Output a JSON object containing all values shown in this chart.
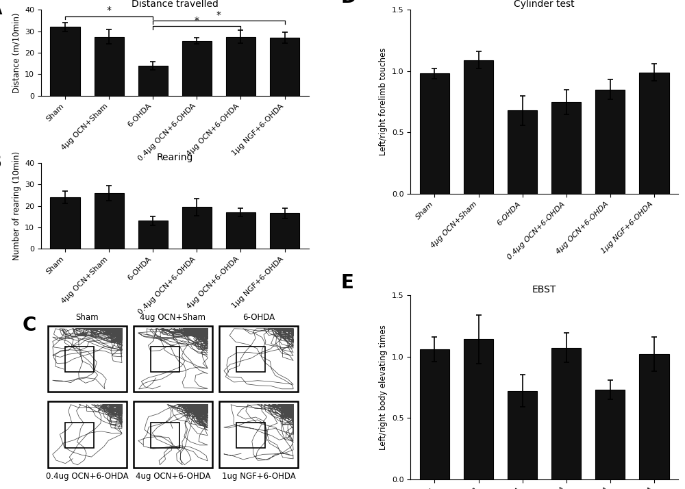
{
  "categories": [
    "Sham",
    "4μg OCN+Sham",
    "6-OHDA",
    "0.4μg OCN+6-OHDA",
    "4μg OCN+6-OHDA",
    "1μg NGF+6-OHDA"
  ],
  "A_values": [
    32,
    27.5,
    14,
    25.5,
    27.5,
    27
  ],
  "A_errors": [
    2.0,
    3.5,
    2.0,
    1.5,
    3.0,
    2.5
  ],
  "A_title": "Distance travelled",
  "A_ylabel": "Distance (m/10min)",
  "A_ylim": [
    0,
    40
  ],
  "A_yticks": [
    0,
    10,
    20,
    30,
    40
  ],
  "B_values": [
    24,
    26,
    13,
    19.5,
    17,
    16.5
  ],
  "B_errors": [
    3.0,
    3.5,
    2.0,
    4.0,
    2.0,
    2.5
  ],
  "B_title": "Rearing",
  "B_ylabel": "Number of rearing (10min)",
  "B_ylim": [
    0,
    40
  ],
  "B_yticks": [
    0,
    10,
    20,
    30,
    40
  ],
  "D_values": [
    0.98,
    1.09,
    0.68,
    0.75,
    0.85,
    0.99
  ],
  "D_errors": [
    0.04,
    0.07,
    0.12,
    0.1,
    0.08,
    0.07
  ],
  "D_title": "Cylinder test",
  "D_ylabel": "Left/right forelimb touches",
  "D_ylim": [
    0.0,
    1.5
  ],
  "D_yticks": [
    0.0,
    0.5,
    1.0,
    1.5
  ],
  "E_values": [
    1.06,
    1.14,
    0.72,
    1.07,
    0.73,
    1.02
  ],
  "E_errors": [
    0.1,
    0.2,
    0.13,
    0.12,
    0.08,
    0.14
  ],
  "E_title": "EBST",
  "E_ylabel": "Left/right body elevating times",
  "E_ylim": [
    0.0,
    1.5
  ],
  "E_yticks": [
    0.0,
    0.5,
    1.0,
    1.5
  ],
  "bar_color": "#111111",
  "bg_color": "#ffffff",
  "label_fontsize": 8.5,
  "tick_fontsize": 8,
  "title_fontsize": 10,
  "panel_label_fontsize": 20,
  "C_labels_top": [
    "Sham",
    "4ug OCN+Sham",
    "6-OHDA"
  ],
  "C_labels_bot": [
    "0.4ug OCN+6-OHDA",
    "4ug OCN+6-OHDA",
    "1ug NGF+6-OHDA"
  ],
  "track_seeds": [
    42,
    99,
    7,
    13,
    55,
    88
  ],
  "track_steps": [
    600,
    700,
    200,
    250,
    500,
    400
  ],
  "track_step_size": [
    0.035,
    0.035,
    0.045,
    0.04,
    0.04,
    0.04
  ],
  "track_wall_bias": [
    0.85,
    0.8,
    0.5,
    0.4,
    0.7,
    0.75
  ]
}
